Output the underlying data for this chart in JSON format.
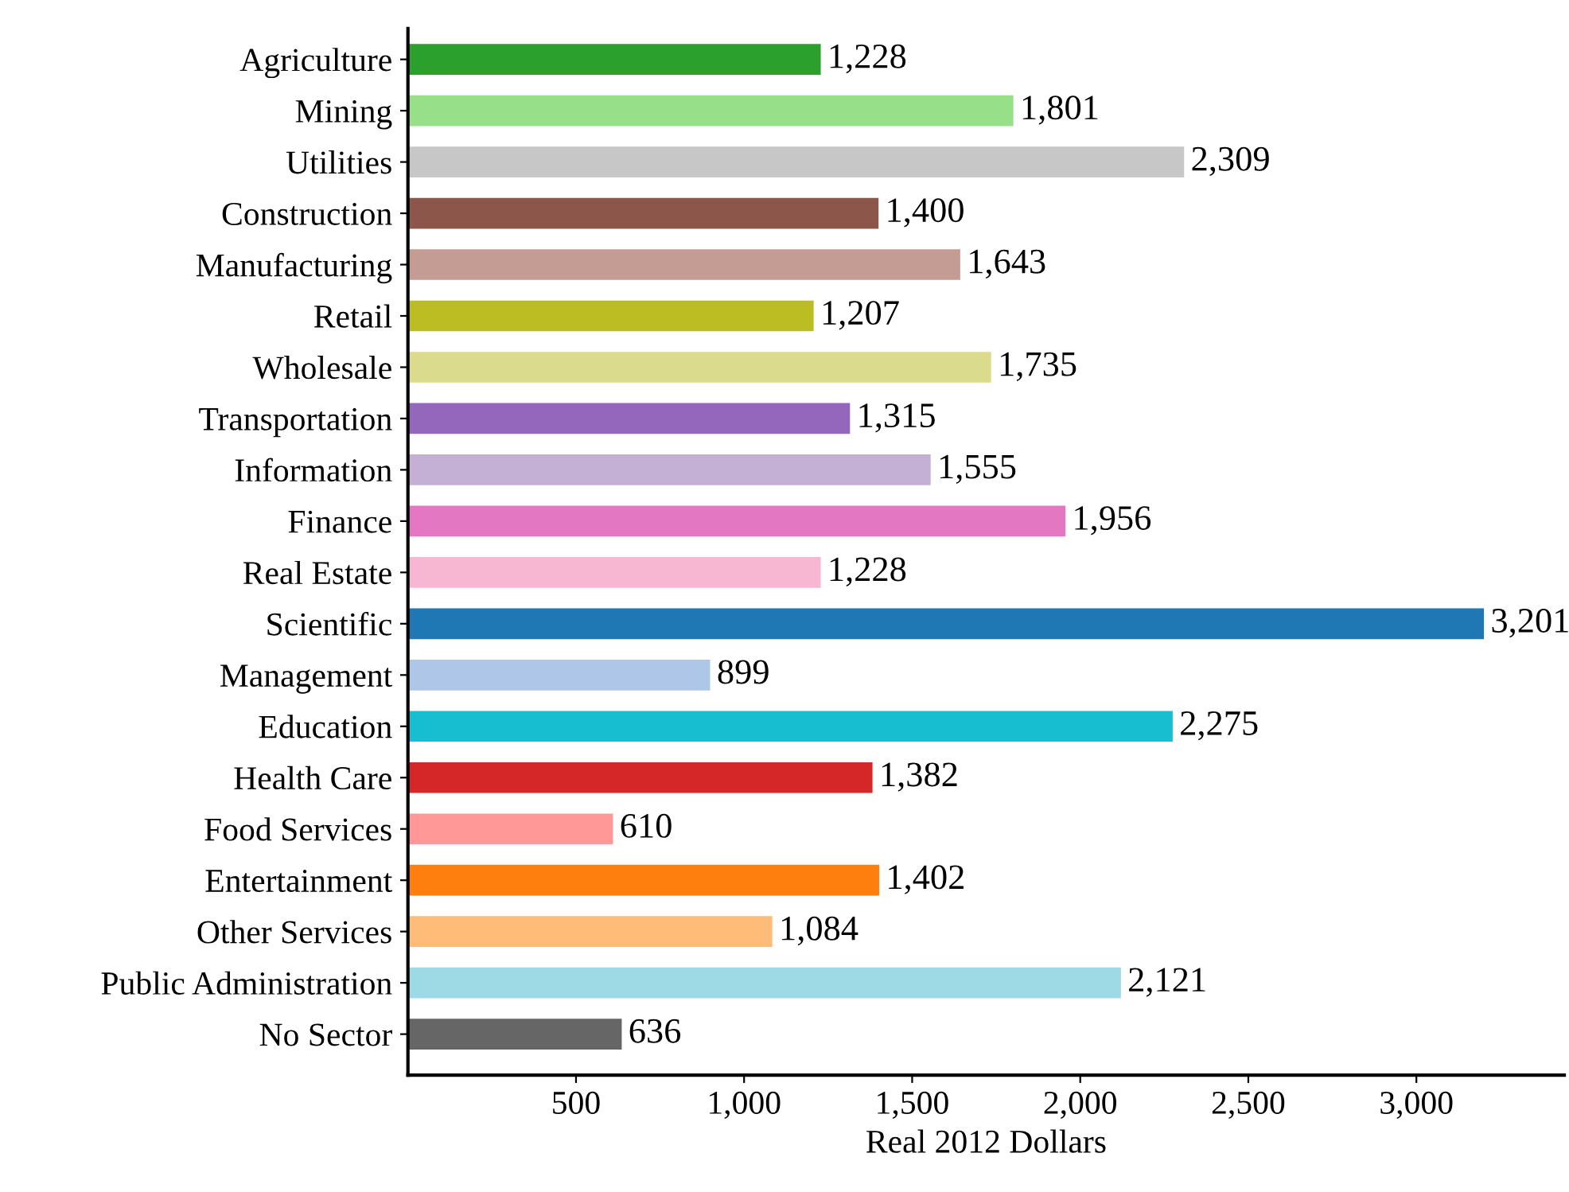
{
  "chart_data": {
    "type": "bar",
    "orientation": "horizontal",
    "xlabel": "Real 2012 Dollars",
    "categories": [
      "Agriculture",
      "Mining",
      "Utilities",
      "Construction",
      "Manufacturing",
      "Retail",
      "Wholesale",
      "Transportation",
      "Information",
      "Finance",
      "Real Estate",
      "Scientific",
      "Management",
      "Education",
      "Health Care",
      "Food Services",
      "Entertainment",
      "Other Services",
      "Public Administration",
      "No Sector"
    ],
    "values": [
      1228,
      1801,
      2309,
      1400,
      1643,
      1207,
      1735,
      1315,
      1555,
      1956,
      1228,
      3201,
      899,
      2275,
      1382,
      610,
      1402,
      1084,
      2121,
      636
    ],
    "value_labels": [
      "1,228",
      "1,801",
      "2,309",
      "1,400",
      "1,643",
      "1,207",
      "1,735",
      "1,315",
      "1,555",
      "1,956",
      "1,228",
      "3,201",
      "899",
      "2,275",
      "1,382",
      "610",
      "1,402",
      "1,084",
      "2,121",
      "636"
    ],
    "colors": [
      "#2ca02c",
      "#98df8a",
      "#c7c7c7",
      "#8c564b",
      "#c49c94",
      "#bcbd22",
      "#dbdb8d",
      "#9467bd",
      "#c5b0d5",
      "#e377c2",
      "#f7b6d2",
      "#1f77b4",
      "#aec7e8",
      "#17becf",
      "#d62728",
      "#ff9896",
      "#ff7f0e",
      "#ffbb78",
      "#9edae5",
      "#666666"
    ],
    "xlim": [
      0,
      3440
    ],
    "xticks": [
      500,
      {
        "value": 1000,
        "label": "1,000"
      },
      {
        "value": 1500,
        "label": "1,500"
      },
      {
        "value": 2000,
        "label": "2,000"
      },
      {
        "value": 2500,
        "label": "2,500"
      },
      {
        "value": 3000,
        "label": "3,000"
      }
    ],
    "grid": false
  }
}
